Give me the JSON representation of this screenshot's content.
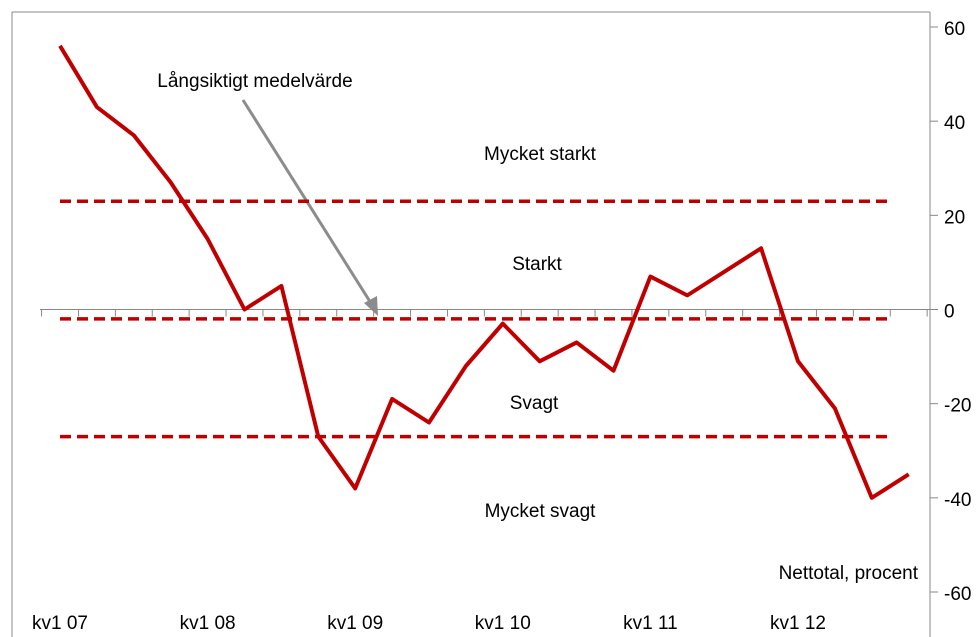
{
  "chart_data": {
    "type": "line",
    "categories": [
      "kv1 07",
      null,
      null,
      null,
      "kv1 08",
      null,
      null,
      null,
      "kv1 09",
      null,
      null,
      null,
      "kv1 10",
      null,
      null,
      null,
      "kv1 11",
      null,
      null,
      null,
      "kv1 12",
      null,
      null,
      null
    ],
    "series": [
      {
        "name": null,
        "color": "#c00000",
        "values": [
          56,
          43,
          37,
          27,
          15,
          0,
          5,
          -27,
          -38,
          -19,
          -24,
          -12,
          -3,
          -11,
          -7,
          -13,
          7,
          3,
          8,
          13,
          -11,
          -21,
          -40,
          -35
        ]
      }
    ],
    "reference_lines": {
      "color": "#c00000",
      "values": [
        23,
        -2,
        -27
      ]
    },
    "band_labels": [
      "Mycket starkt",
      "Starkt",
      "Svagt",
      "Mycket svagt"
    ],
    "annotation": "Långsiktigt medelvärde",
    "y_axis_label": "Nettotal, procent",
    "ylim": [
      -60,
      60
    ],
    "yticks": [
      60,
      40,
      20,
      0,
      -20,
      -40,
      -60
    ]
  }
}
